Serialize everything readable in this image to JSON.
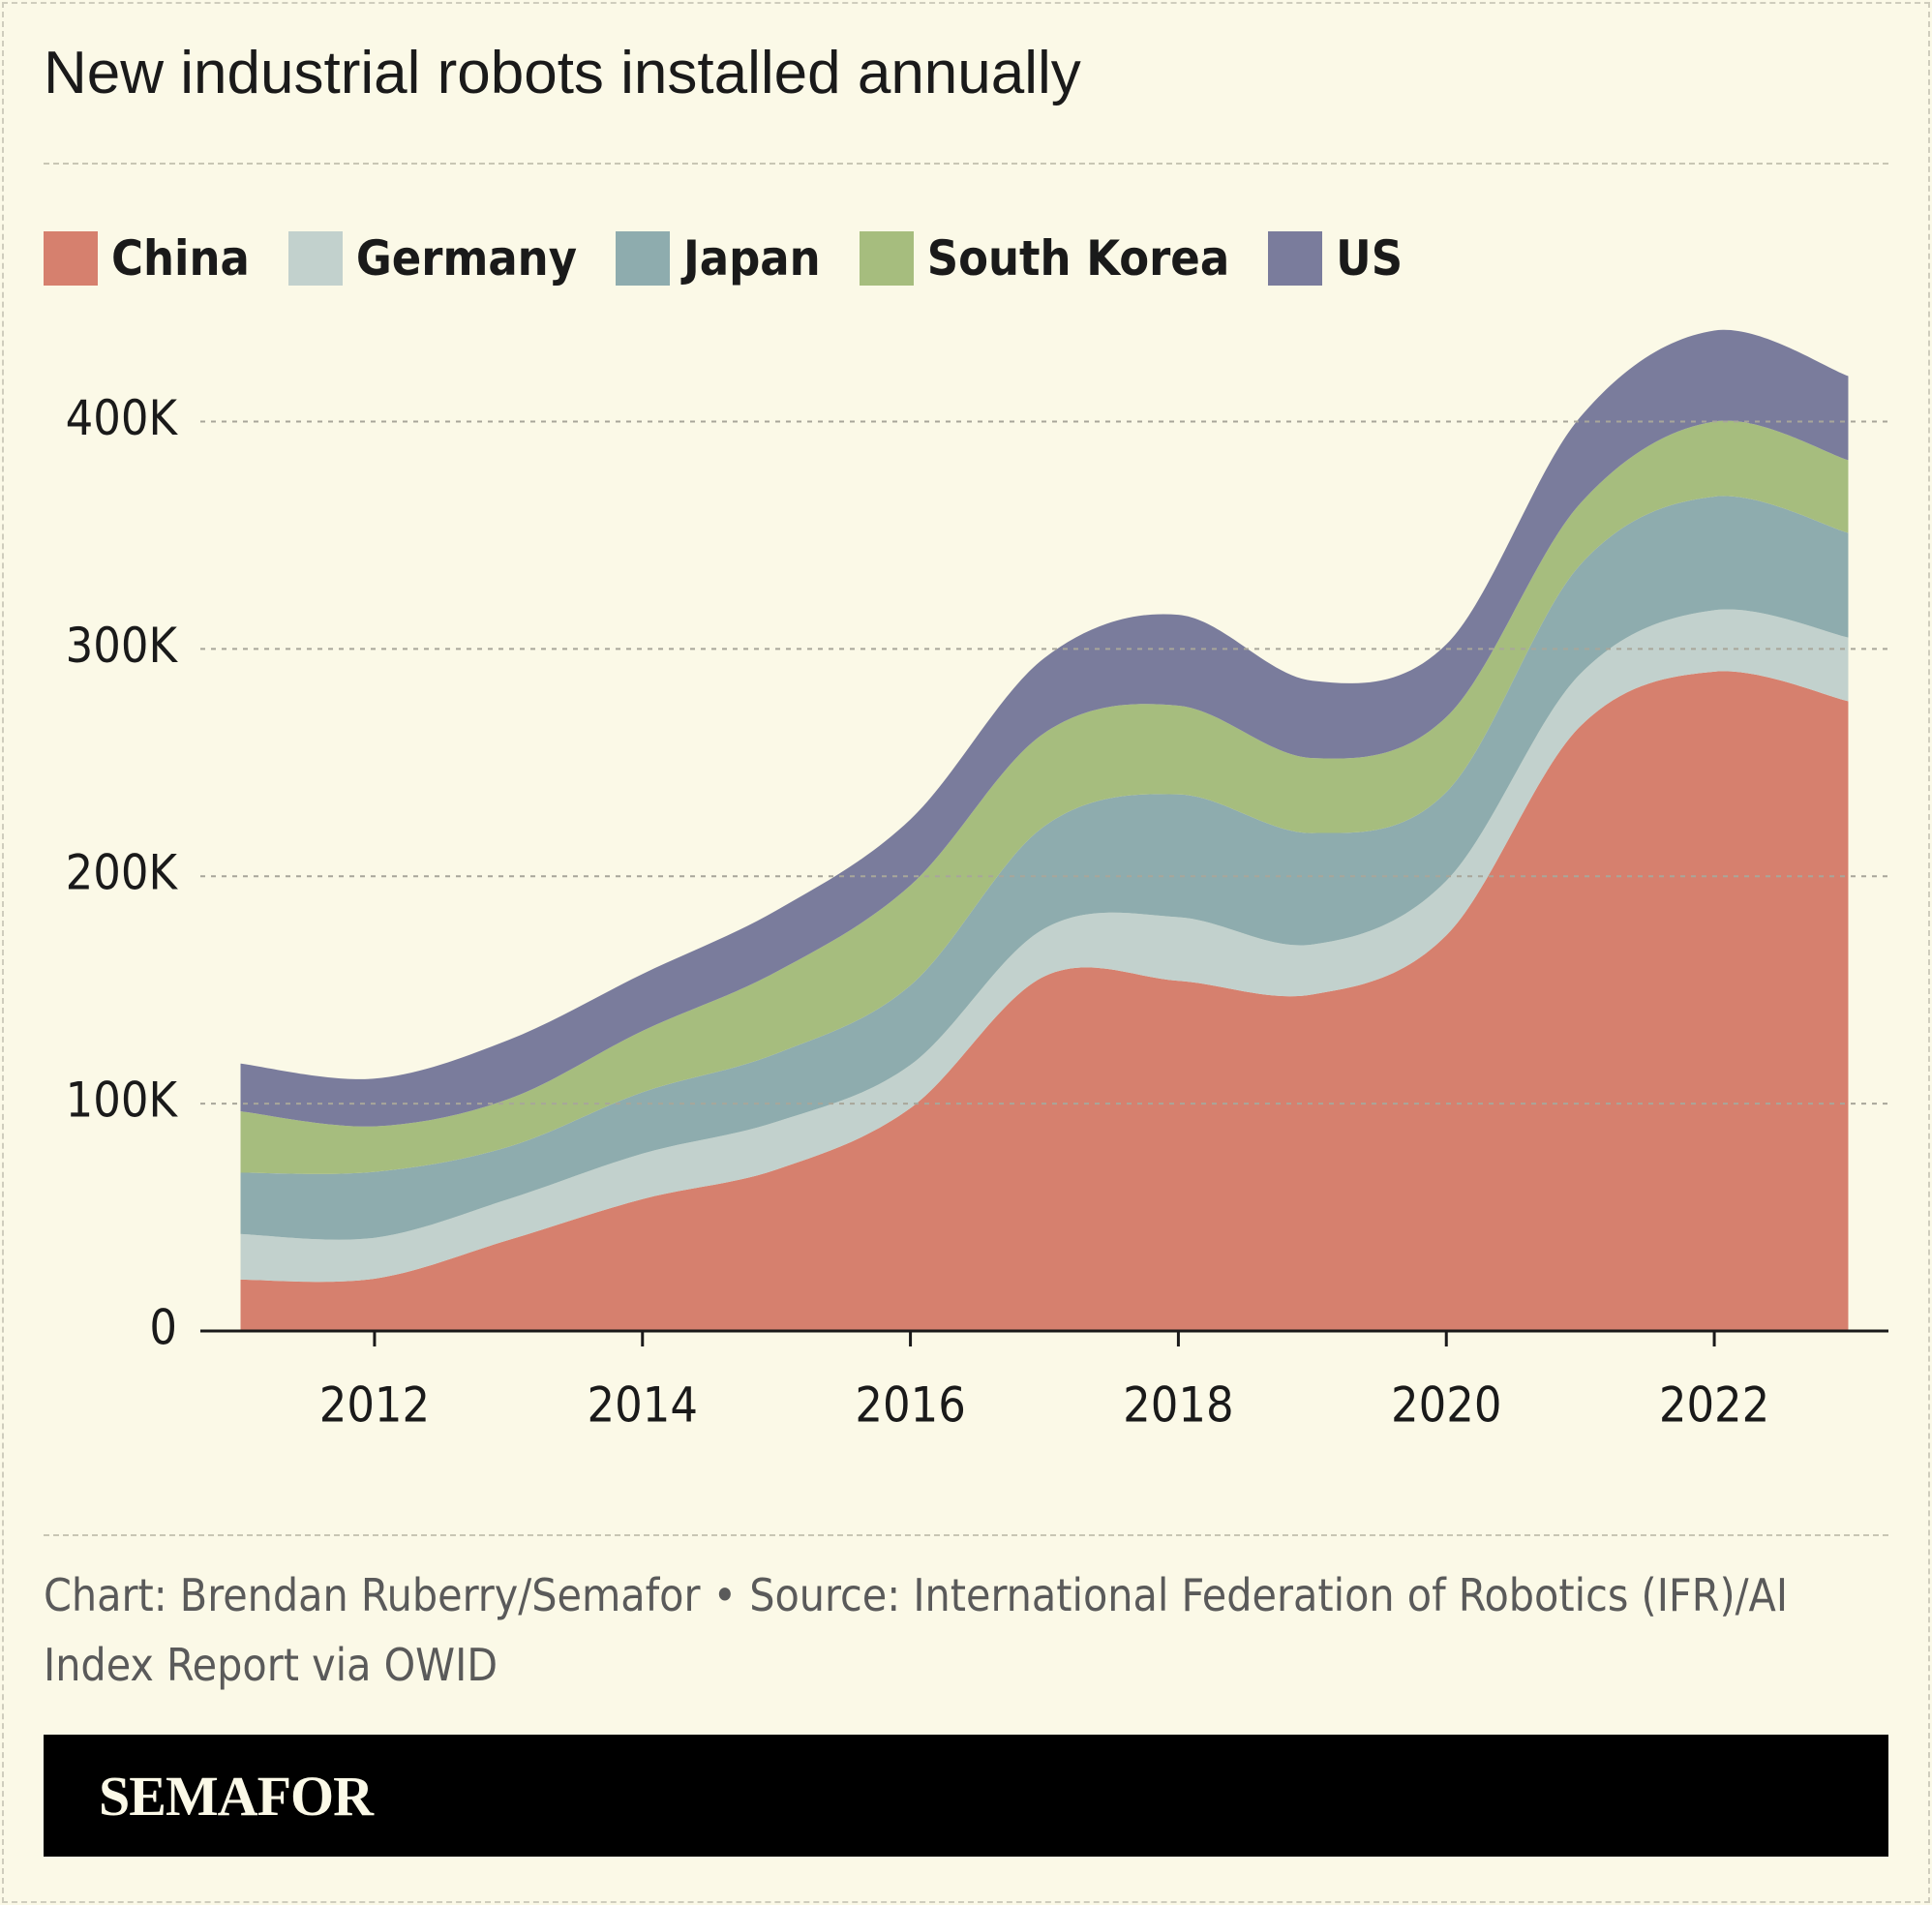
{
  "chart_data": {
    "type": "stacked-area",
    "title": "New industrial robots installed annually",
    "source": "Chart: Brendan Ruberry/Semafor • Source: International Federation of Robotics (IFR)/AI Index Report via OWID",
    "brand": "SEMAFOR",
    "x": [
      2011,
      2012,
      2013,
      2014,
      2015,
      2016,
      2017,
      2018,
      2019,
      2020,
      2021,
      2022,
      2023
    ],
    "series": [
      {
        "name": "China",
        "color": "#d6806e",
        "values": [
          22600,
          23000,
          40000,
          58000,
          71000,
          98000,
          156000,
          154000,
          148000,
          174000,
          266000,
          290000,
          277000
        ]
      },
      {
        "name": "Germany",
        "color": "#c2d1cd",
        "values": [
          20000,
          18000,
          18000,
          20000,
          21000,
          19000,
          21000,
          28000,
          22000,
          24000,
          23000,
          27000,
          28000
        ]
      },
      {
        "name": "Japan",
        "color": "#8eacae",
        "values": [
          27000,
          29000,
          23000,
          27000,
          30000,
          35000,
          45000,
          54000,
          49000,
          39000,
          48000,
          50000,
          46000
        ]
      },
      {
        "name": "South Korea",
        "color": "#a6bd7e",
        "values": [
          27000,
          20000,
          21000,
          27000,
          36000,
          44000,
          41000,
          39000,
          33000,
          33000,
          27000,
          33000,
          32000
        ]
      },
      {
        "name": "US",
        "color": "#7a7c9c",
        "values": [
          21000,
          21000,
          26000,
          25000,
          27000,
          29000,
          33000,
          40000,
          34000,
          32000,
          38000,
          40000,
          37000
        ]
      }
    ],
    "xlim": [
      2010.7,
      2023.3
    ],
    "xticks": [
      2012,
      2014,
      2016,
      2018,
      2020,
      2022
    ],
    "ylim": [
      0,
      450000
    ],
    "yticks": [
      0,
      {
        "value": 100000,
        "label": "100K"
      },
      {
        "value": 200000,
        "label": "200K"
      },
      {
        "value": 300000,
        "label": "300K"
      },
      {
        "value": 400000,
        "label": "400K"
      }
    ],
    "grid": true
  }
}
